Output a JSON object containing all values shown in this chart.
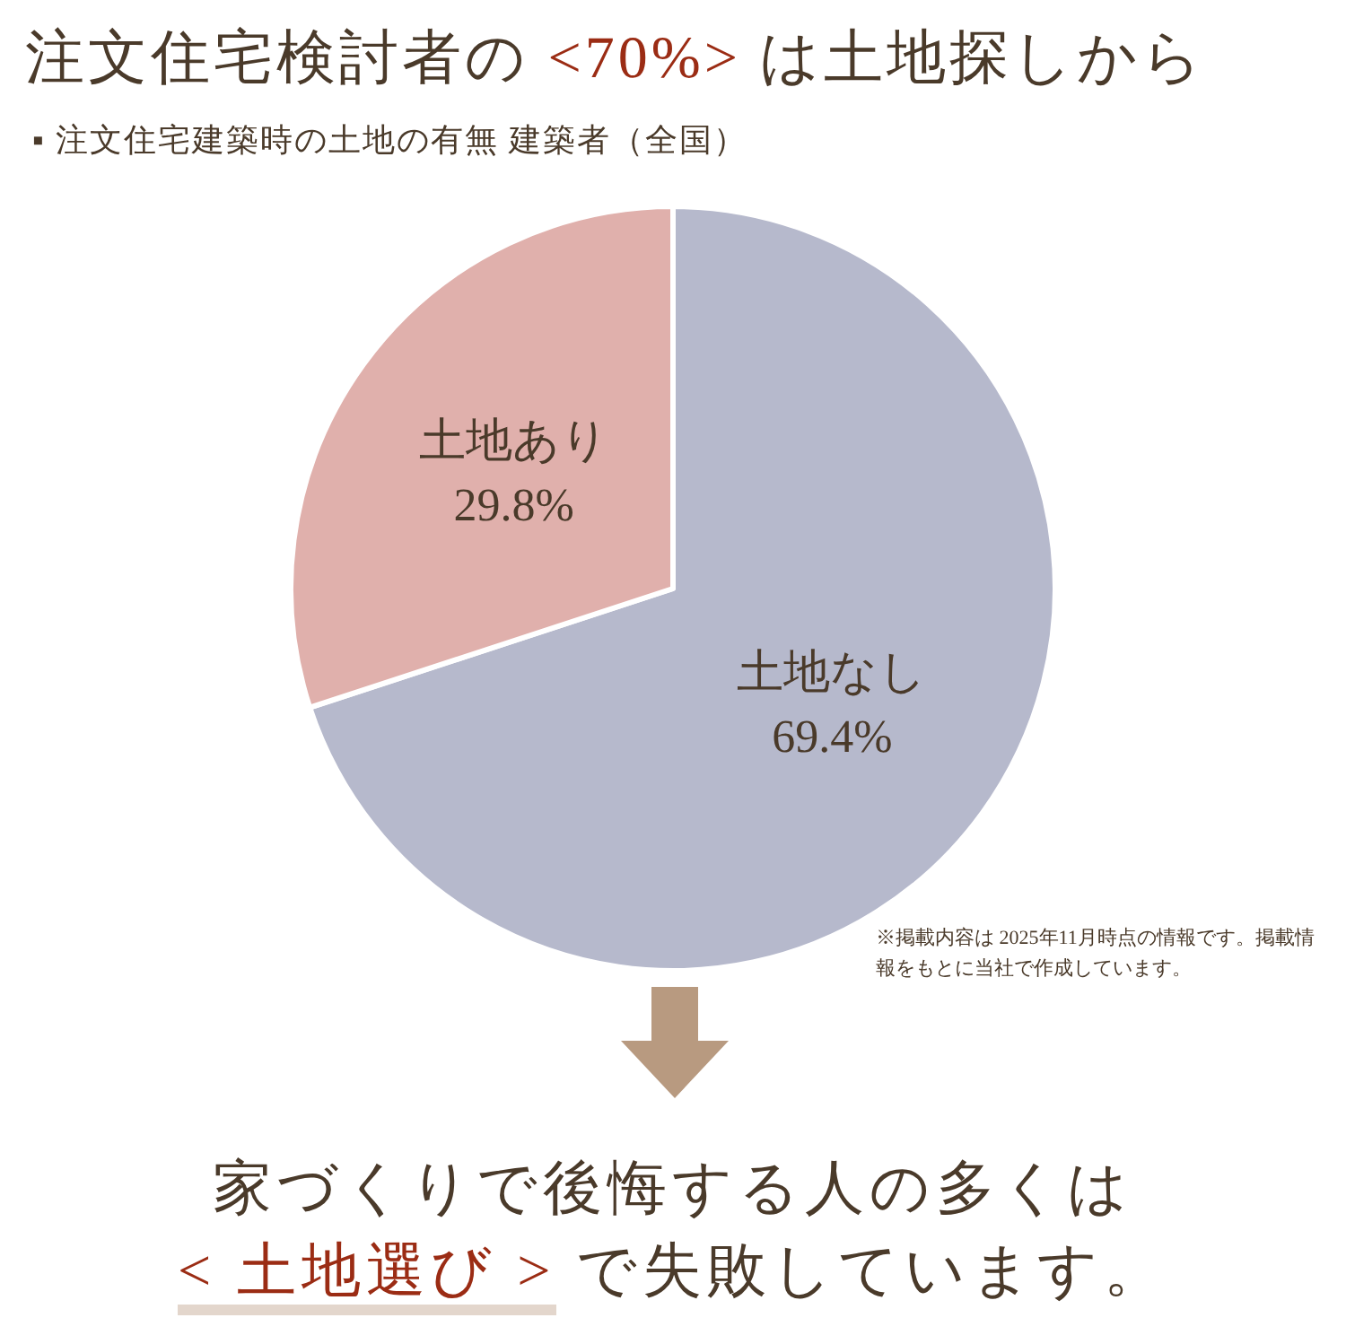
{
  "chart_data": {
    "type": "pie",
    "title": "注文住宅検討者の <70%> は土地探しから",
    "subtitle": "▪ 注文住宅建築時の土地の有無  建築者（全国）",
    "categories": [
      "土地なし",
      "土地あり"
    ],
    "values": [
      69.4,
      29.8
    ],
    "value_labels": [
      "69.4%",
      "29.8%"
    ],
    "colors": [
      "#b6b9cc",
      "#e0b0ac"
    ],
    "annotations": [
      "※掲載内容は 2025年11月時点の情報です。掲載情報をもとに当社で作成しています。",
      "家づくりで後悔する人の多くは\n< 土地選び > で失敗しています。"
    ],
    "legend": false
  }
}
